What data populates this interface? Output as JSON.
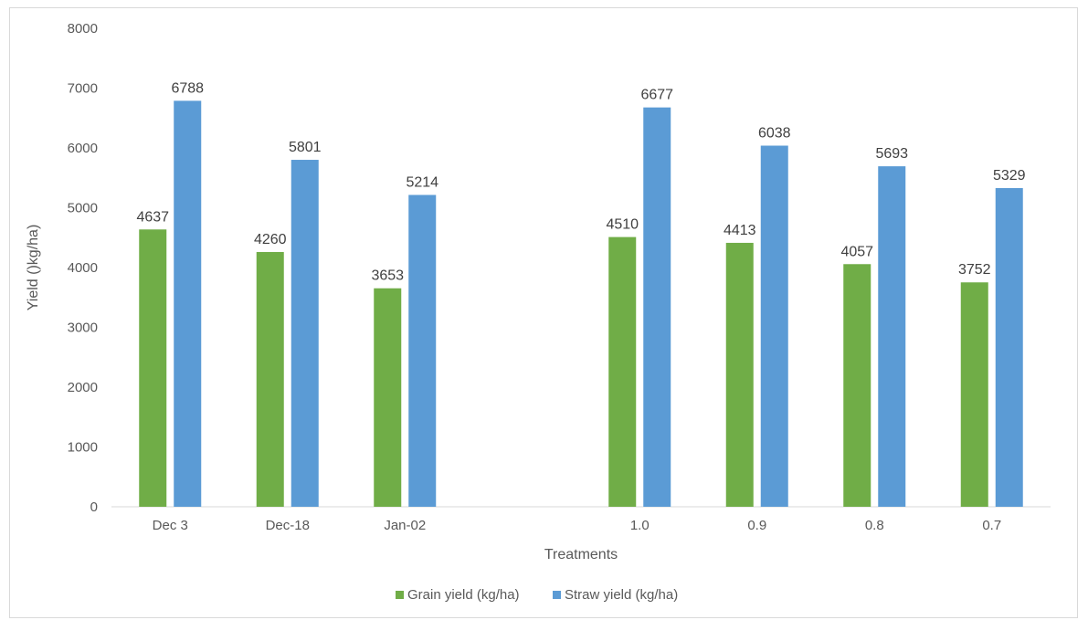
{
  "chart_data": {
    "type": "bar",
    "title": "",
    "xlabel": "Treatments",
    "ylabel": "Yield ()kg/ha)",
    "ylim": [
      0,
      8000
    ],
    "yticks": [
      0,
      1000,
      2000,
      3000,
      4000,
      5000,
      6000,
      7000,
      8000
    ],
    "grid": false,
    "legend_position": "bottom",
    "categories": [
      "Dec 3",
      "Dec-18",
      "Jan-02",
      "",
      "1.0",
      "0.9",
      "0.8",
      "0.7"
    ],
    "series": [
      {
        "name": "Grain yield (kg/ha)",
        "color": "#70ad47",
        "values": [
          4637,
          4260,
          3653,
          null,
          4510,
          4413,
          4057,
          3752
        ]
      },
      {
        "name": "Straw yield (kg/ha)",
        "color": "#5b9bd5",
        "values": [
          6788,
          5801,
          5214,
          null,
          6677,
          6038,
          5693,
          5329
        ]
      }
    ]
  }
}
